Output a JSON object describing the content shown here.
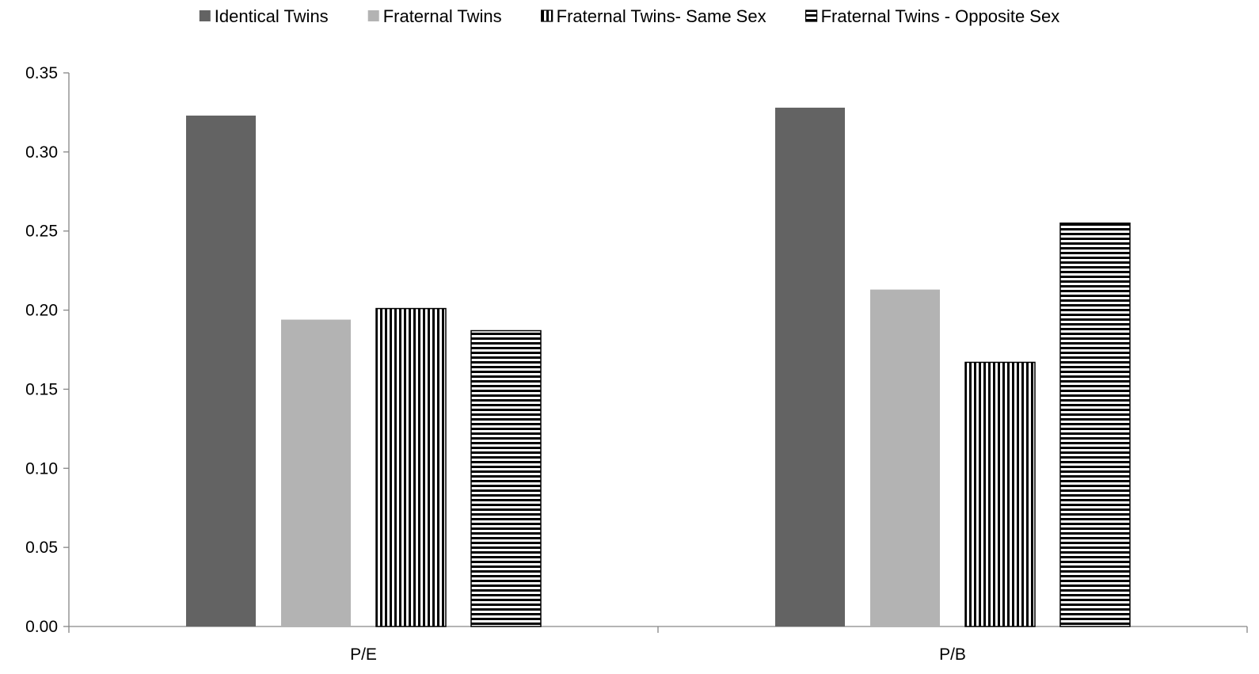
{
  "chart_data": {
    "type": "bar",
    "title": "",
    "xlabel": "",
    "ylabel": "",
    "categories": [
      "P/E",
      "P/B"
    ],
    "ylim": [
      0,
      0.35
    ],
    "yticks": [
      0.0,
      0.05,
      0.1,
      0.15,
      0.2,
      0.25,
      0.3,
      0.35
    ],
    "ytick_labels": [
      "0.00",
      "0.05",
      "0.10",
      "0.15",
      "0.20",
      "0.25",
      "0.30",
      "0.35"
    ],
    "grid": false,
    "legend_position": "top",
    "series": [
      {
        "name": "Identical Twins",
        "values": [
          0.323,
          0.328
        ],
        "fill": "solid",
        "color": "#636363"
      },
      {
        "name": "Fraternal Twins",
        "values": [
          0.194,
          0.213
        ],
        "fill": "solid",
        "color": "#b3b3b3"
      },
      {
        "name": "Fraternal Twins- Same Sex",
        "values": [
          0.201,
          0.167
        ],
        "fill": "vertical-stripes",
        "color": "#000000"
      },
      {
        "name": "Fraternal Twins - Opposite Sex",
        "values": [
          0.187,
          0.255
        ],
        "fill": "horizontal-stripes",
        "color": "#000000"
      }
    ]
  }
}
